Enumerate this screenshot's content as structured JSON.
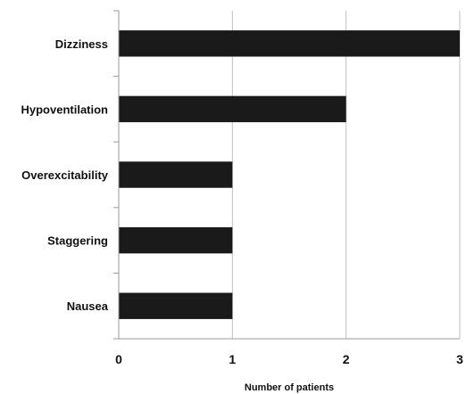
{
  "chart_data": {
    "type": "bar",
    "orientation": "horizontal",
    "categories": [
      "Dizziness",
      "Hypoventilation",
      "Overexcitability",
      "Staggering",
      "Nausea"
    ],
    "values": [
      3,
      2,
      1,
      1,
      1
    ],
    "xlabel": "Number of patients",
    "ylabel": "",
    "title": "",
    "xlim": [
      0,
      3
    ],
    "xticks": [
      0,
      1,
      2,
      3
    ],
    "grid": "vertical",
    "legend": "none",
    "bar_color": "#1a1a1a",
    "grid_color": "#bfbfbf"
  }
}
